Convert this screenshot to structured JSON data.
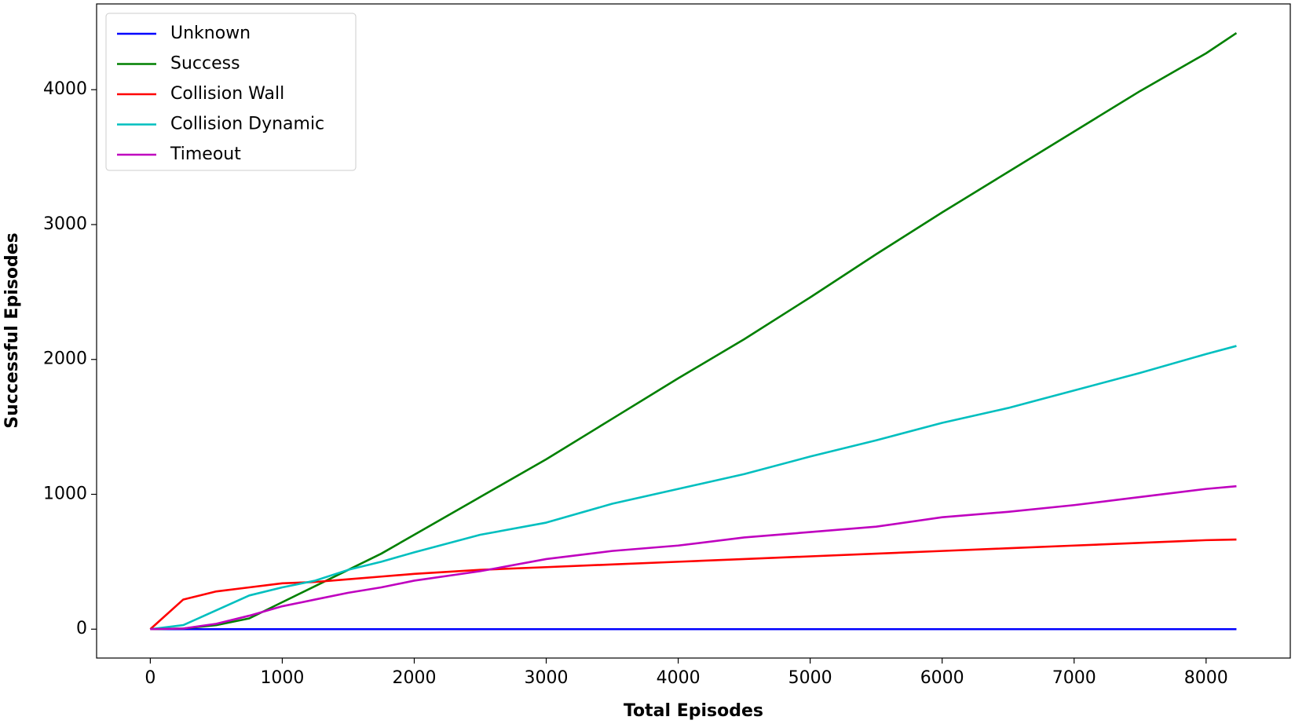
{
  "chart_data": {
    "type": "line",
    "x_label": "Total Episodes",
    "y_label": "Successful Episodes",
    "x": [
      0,
      250,
      500,
      750,
      1000,
      1250,
      1500,
      1750,
      2000,
      2500,
      3000,
      3500,
      4000,
      4500,
      5000,
      5500,
      6000,
      6500,
      7000,
      7500,
      8000,
      8230
    ],
    "series": [
      {
        "name": "Unknown",
        "color": "#0000ff",
        "values": [
          0,
          0,
          0,
          0,
          0,
          0,
          0,
          0,
          0,
          0,
          0,
          0,
          0,
          0,
          0,
          0,
          0,
          0,
          0,
          0,
          0,
          0
        ]
      },
      {
        "name": "Success",
        "color": "#008000",
        "values": [
          0,
          5,
          30,
          80,
          200,
          320,
          440,
          560,
          700,
          980,
          1260,
          1560,
          1860,
          2150,
          2460,
          2780,
          3090,
          3390,
          3690,
          3990,
          4270,
          4420
        ]
      },
      {
        "name": "Collision Wall",
        "color": "#ff0000",
        "values": [
          0,
          220,
          280,
          310,
          340,
          350,
          370,
          390,
          410,
          440,
          460,
          480,
          500,
          520,
          540,
          560,
          580,
          600,
          620,
          640,
          660,
          665
        ]
      },
      {
        "name": "Collision Dynamic",
        "color": "#00bfbf",
        "values": [
          0,
          30,
          140,
          250,
          310,
          360,
          440,
          500,
          570,
          700,
          790,
          930,
          1040,
          1150,
          1280,
          1400,
          1530,
          1640,
          1770,
          1900,
          2040,
          2100
        ]
      },
      {
        "name": "Timeout",
        "color": "#bf00bf",
        "values": [
          0,
          5,
          40,
          100,
          170,
          220,
          270,
          310,
          360,
          430,
          520,
          580,
          620,
          680,
          720,
          760,
          830,
          870,
          920,
          980,
          1040,
          1060
        ]
      }
    ],
    "xlim": [
      -407,
      8638
    ],
    "ylim": [
      -214,
      4636
    ],
    "xticks": [
      0,
      1000,
      2000,
      3000,
      4000,
      5000,
      6000,
      7000,
      8000
    ],
    "yticks": [
      0,
      1000,
      2000,
      3000,
      4000
    ],
    "legend": "upper left",
    "grid": false
  }
}
